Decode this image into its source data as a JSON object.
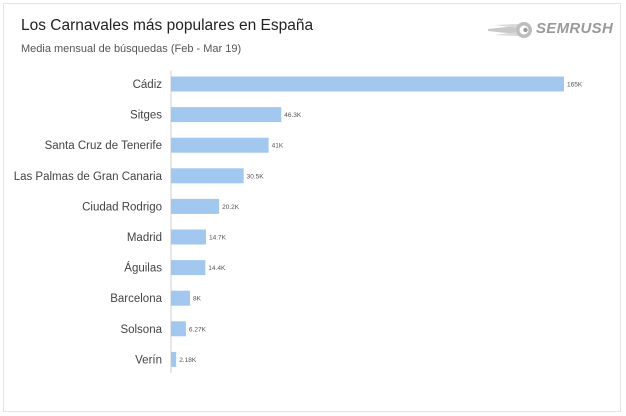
{
  "header": {
    "title": "Los Carnavales más populares en España",
    "subtitle": "Media mensual de búsquedas (Feb - Mar 19)",
    "brand": "SEMRUSH"
  },
  "colors": {
    "bar": "#a3c8f0",
    "text": "#444444",
    "brand": "#9a9a9a"
  },
  "chart_data": {
    "type": "bar",
    "orientation": "horizontal",
    "title": "Los Carnavales más populares en España",
    "subtitle": "Media mensual de búsquedas (Feb - Mar 19)",
    "categories": [
      "Cádiz",
      "Sitges",
      "Santa Cruz de Tenerife",
      "Las Palmas de Gran Canaria",
      "Ciudad Rodrigo",
      "Madrid",
      "Águilas",
      "Barcelona",
      "Solsona",
      "Verín"
    ],
    "values": [
      165000,
      46300,
      41000,
      30500,
      20200,
      14700,
      14400,
      8000,
      6270,
      2180
    ],
    "value_labels": [
      "165K",
      "46.3K",
      "41K",
      "30.5K",
      "20.2K",
      "14.7K",
      "14.4K",
      "8K",
      "6.27K",
      "2.18K"
    ],
    "xlim": [
      0,
      165000
    ],
    "grid": false,
    "legend": "none"
  }
}
